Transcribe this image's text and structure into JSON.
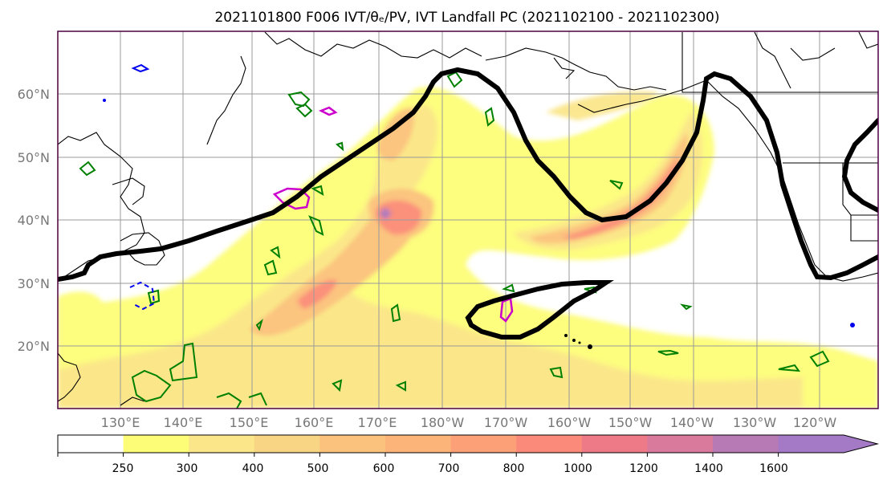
{
  "title": "2021101800 F006 IVT/θₑ/PV, IVT Landfall PC (2021102100 - 2021102300)",
  "map": {
    "lat_labels": [
      "60°N",
      "50°N",
      "40°N",
      "30°N",
      "20°N"
    ],
    "lon_labels": [
      "130°E",
      "140°E",
      "150°E",
      "160°E",
      "170°E",
      "180°W",
      "170°W",
      "160°W",
      "150°W",
      "140°W",
      "130°W",
      "120°W"
    ]
  },
  "colorbar": {
    "levels": [
      "250",
      "300",
      "400",
      "500",
      "600",
      "700",
      "800",
      "1000",
      "1200",
      "1400",
      "1600"
    ],
    "colors": [
      "#ffffff",
      "#fdfd78",
      "#fbe68a",
      "#f8d585",
      "#fbc27e",
      "#fdb479",
      "#fca077",
      "#fb8a7a",
      "#ee7a87",
      "#d97a9c",
      "#b87ab4",
      "#a47ac6"
    ]
  },
  "colors": {
    "ivt_landfall_pc": "#000000",
    "contour_green": "#008000",
    "contour_magenta": "#cc00cc",
    "contour_blue": "#0000ee",
    "axis_label": "#777777",
    "frame": "#4b0040"
  }
}
